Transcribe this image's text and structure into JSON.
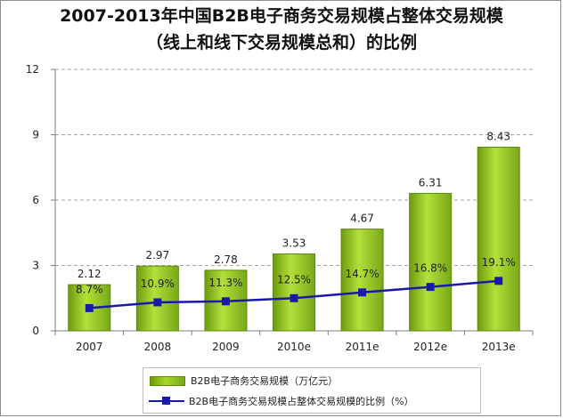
{
  "colors": {
    "bar_fill": "#9ccc2c",
    "bar_dark": "#5d8a0a",
    "line": "#1a1aa8",
    "axis": "#7f7f7f",
    "grid": "#a6a6a6"
  },
  "chart_data": {
    "type": "bar+line",
    "title": "2007-2013年中国B2B电子商务交易规模占整体交易规模",
    "subtitle": "（线上和线下交易规模总和）的比例",
    "categories": [
      "2007",
      "2008",
      "2009",
      "2010e",
      "2011e",
      "2012e",
      "2013e"
    ],
    "y_ticks": [
      "0",
      "3",
      "6",
      "9",
      "12"
    ],
    "ylim": [
      0,
      12
    ],
    "grid": "horizontal dashed",
    "series": [
      {
        "name": "B2B电子商务交易规模（万亿元）",
        "kind": "bar",
        "values": [
          2.12,
          2.97,
          2.78,
          3.53,
          4.67,
          6.31,
          8.43
        ],
        "labels": [
          "2.12",
          "2.97",
          "2.78",
          "3.53",
          "4.67",
          "6.31",
          "8.43"
        ]
      },
      {
        "name": "B2B电子商务交易规模占整体交易规模的比例（%）",
        "kind": "line",
        "values_percent": [
          8.7,
          10.9,
          11.3,
          12.5,
          14.7,
          16.8,
          19.1
        ],
        "labels": [
          "8.7%",
          "10.9%",
          "11.3%",
          "12.5%",
          "14.7%",
          "16.8%",
          "19.1%"
        ],
        "secondary_axis_range_percent": [
          0,
          100
        ]
      }
    ],
    "legend": "bottom-center"
  }
}
